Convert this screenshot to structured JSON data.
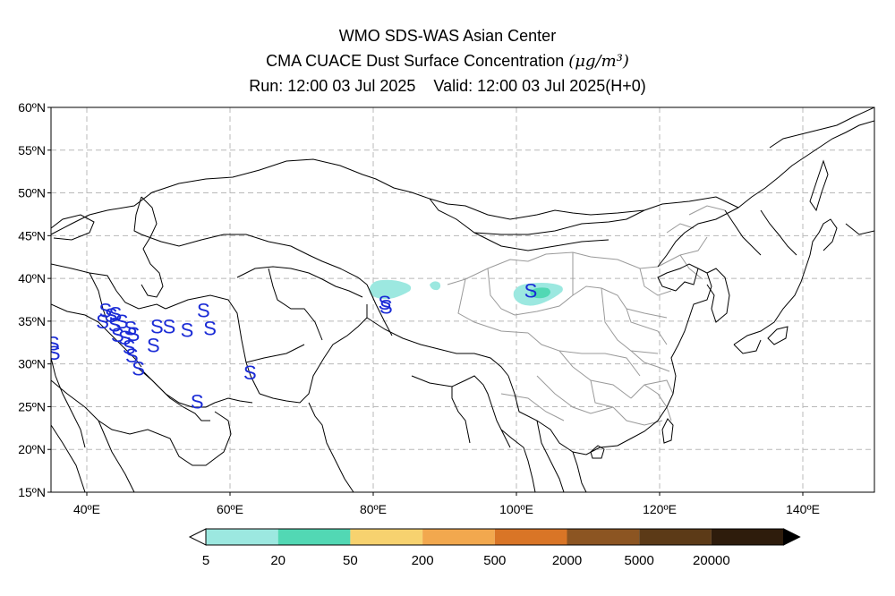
{
  "title": {
    "line1": "WMO SDS-WAS Asian Center",
    "line2": "CMA CUACE Dust Surface Concentration",
    "unit": "(μg/m³)",
    "run_label": "Run: 12:00 03 Jul 2025",
    "valid_label": "Valid: 12:00 03 Jul 2025(H+0)"
  },
  "map": {
    "lon_range": [
      35,
      150
    ],
    "lat_range": [
      15,
      60
    ],
    "lon_ticks": [
      {
        "value": 40,
        "label": "40ºE"
      },
      {
        "value": 60,
        "label": "60ºE"
      },
      {
        "value": 80,
        "label": "80ºE"
      },
      {
        "value": 100,
        "label": "100ºE"
      },
      {
        "value": 120,
        "label": "120ºE"
      },
      {
        "value": 140,
        "label": "140ºE"
      }
    ],
    "lat_ticks": [
      {
        "value": 60,
        "label": "60ºN"
      },
      {
        "value": 55,
        "label": "55ºN"
      },
      {
        "value": 50,
        "label": "50ºN"
      },
      {
        "value": 45,
        "label": "45ºN"
      },
      {
        "value": 40,
        "label": "40ºN"
      },
      {
        "value": 35,
        "label": "35ºN"
      },
      {
        "value": 30,
        "label": "30ºN"
      },
      {
        "value": 25,
        "label": "25ºN"
      },
      {
        "value": 20,
        "label": "20ºN"
      },
      {
        "value": 15,
        "label": "15ºN"
      }
    ],
    "grid": "dashed",
    "dust_station_symbol": "S",
    "dust_station_color": "#1a2bd6",
    "dust_stations": [
      {
        "lon": 35.3,
        "lat": 32.4
      },
      {
        "lon": 35.4,
        "lat": 31.3
      },
      {
        "lon": 42.2,
        "lat": 35.0
      },
      {
        "lon": 42.6,
        "lat": 36.3
      },
      {
        "lon": 43.4,
        "lat": 35.7
      },
      {
        "lon": 43.9,
        "lat": 34.6
      },
      {
        "lon": 44.3,
        "lat": 33.4
      },
      {
        "lon": 44.0,
        "lat": 35.9
      },
      {
        "lon": 44.9,
        "lat": 35.0
      },
      {
        "lon": 45.3,
        "lat": 33.1
      },
      {
        "lon": 45.9,
        "lat": 32.0
      },
      {
        "lon": 46.5,
        "lat": 33.5
      },
      {
        "lon": 46.1,
        "lat": 34.2
      },
      {
        "lon": 46.3,
        "lat": 31.0
      },
      {
        "lon": 47.2,
        "lat": 29.5
      },
      {
        "lon": 49.3,
        "lat": 32.2
      },
      {
        "lon": 49.8,
        "lat": 34.4
      },
      {
        "lon": 51.5,
        "lat": 34.4
      },
      {
        "lon": 54.0,
        "lat": 34.0
      },
      {
        "lon": 56.3,
        "lat": 36.3
      },
      {
        "lon": 57.2,
        "lat": 34.2
      },
      {
        "lon": 55.4,
        "lat": 25.6
      },
      {
        "lon": 62.8,
        "lat": 29.0
      },
      {
        "lon": 81.6,
        "lat": 37.2
      },
      {
        "lon": 81.8,
        "lat": 36.7
      },
      {
        "lon": 102.0,
        "lat": 38.6
      }
    ],
    "dust_areas_level": "5-20",
    "colors": {
      "coast": "#000000",
      "province": "#9a9a9a",
      "dust_light": "#9ce8e0",
      "dust_mid": "#52d8b4"
    }
  },
  "legend": {
    "labels": [
      "5",
      "20",
      "50",
      "200",
      "500",
      "2000",
      "5000",
      "20000"
    ],
    "colors": [
      "#9ce8e0",
      "#52d8b4",
      "#f7d26f",
      "#f2a84e",
      "#d97526",
      "#8c5522",
      "#5c3a17",
      "#2e1c0c"
    ],
    "under_color": "#ffffff",
    "over_color": "#000000"
  }
}
